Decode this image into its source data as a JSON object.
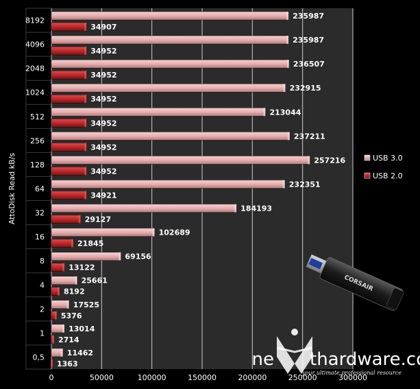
{
  "chart_data": {
    "type": "bar",
    "orientation": "horizontal",
    "ylabel": "AttoDisk Read kB/s",
    "xlabel": "",
    "categories": [
      "8192",
      "4096",
      "2048",
      "1024",
      "512",
      "256",
      "128",
      "64",
      "32",
      "16",
      "8",
      "4",
      "2",
      "1",
      "0,5"
    ],
    "series": [
      {
        "name": "USB 3.0",
        "color": "#e8b0b0",
        "values": [
          235987,
          235987,
          236507,
          232915,
          213044,
          237211,
          257216,
          232351,
          184193,
          102689,
          69156,
          25661,
          17525,
          13014,
          11462
        ]
      },
      {
        "name": "USB 2.0",
        "color": "#c0282a",
        "values": [
          34907,
          34952,
          34952,
          34952,
          34952,
          34952,
          34952,
          34921,
          29127,
          21845,
          13122,
          8192,
          5376,
          2714,
          1363
        ]
      }
    ],
    "xlim": [
      0,
      300000
    ],
    "xticks": [
      "0",
      "50000",
      "100000",
      "150000",
      "200000",
      "250000",
      "300000"
    ],
    "grid": true,
    "legend_position": "right"
  },
  "watermark": {
    "brand_prefix": "ne",
    "brand_suffix": "thardware.com",
    "tagline": "your ultimate professional resource"
  },
  "product_image": {
    "brand_text": "CORSAIR"
  },
  "colors": {
    "background": "#000000",
    "plot_area": "#2b2b2b",
    "gridline": "#cfcfcf",
    "usb3_bar": "#e8b0b0",
    "usb2_bar": "#c0282a"
  }
}
